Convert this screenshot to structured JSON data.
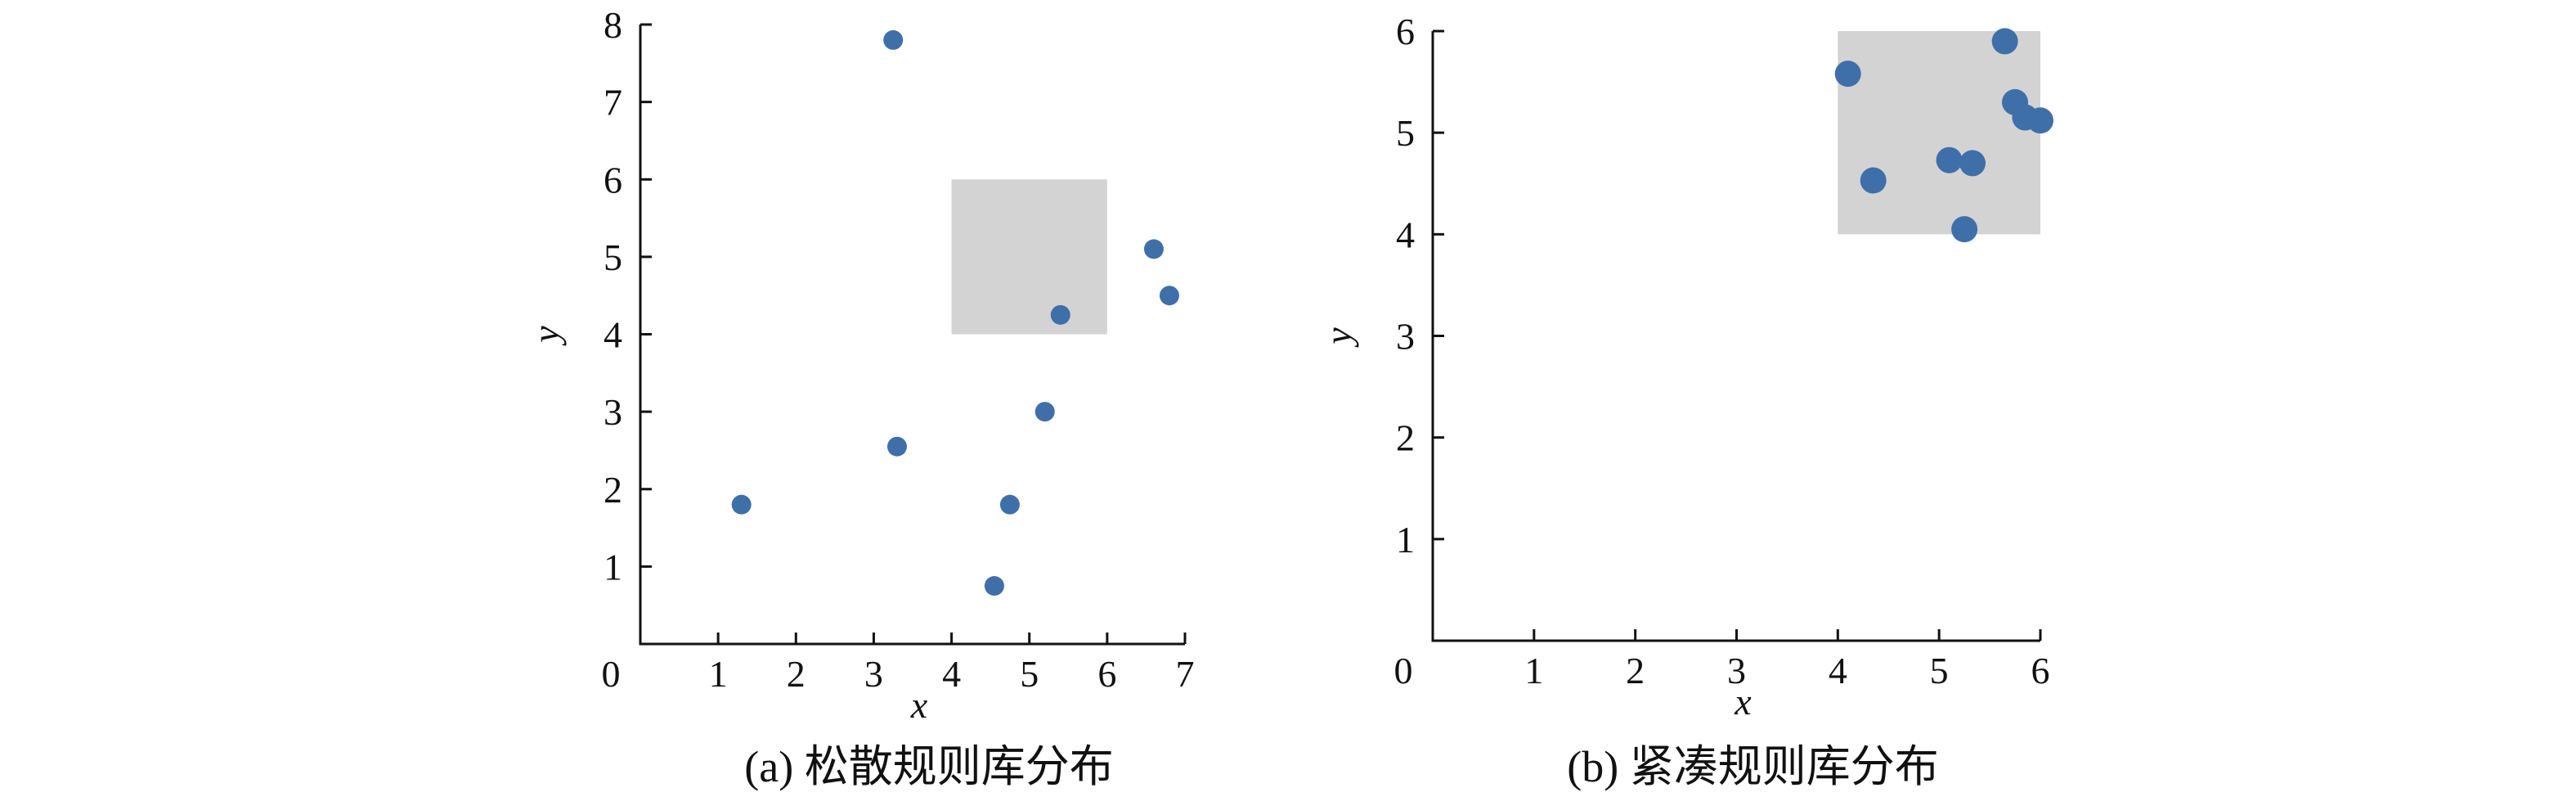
{
  "chart_data": [
    {
      "type": "scatter",
      "title": "",
      "caption": "(a) 松散规则库分布",
      "xlabel": "x",
      "ylabel": "y",
      "xlim": [
        0,
        7
      ],
      "ylim": [
        0,
        8
      ],
      "x_ticks": [
        "1",
        "2",
        "3",
        "4",
        "5",
        "6",
        "7"
      ],
      "y_ticks": [
        "1",
        "2",
        "3",
        "4",
        "5",
        "6",
        "7",
        "8"
      ],
      "origin_label": "0",
      "grid": false,
      "highlight_region": {
        "x": [
          4,
          6
        ],
        "y": [
          4,
          6
        ],
        "color": "#d3d3d3"
      },
      "point_color": "#3f6fa9",
      "points": [
        {
          "x": 3.25,
          "y": 7.8
        },
        {
          "x": 6.6,
          "y": 5.1
        },
        {
          "x": 6.8,
          "y": 4.5
        },
        {
          "x": 5.4,
          "y": 4.25
        },
        {
          "x": 5.2,
          "y": 3.0
        },
        {
          "x": 3.3,
          "y": 2.55
        },
        {
          "x": 1.3,
          "y": 1.8
        },
        {
          "x": 4.75,
          "y": 1.8
        },
        {
          "x": 4.55,
          "y": 0.75
        }
      ]
    },
    {
      "type": "scatter",
      "title": "",
      "caption": "(b) 紧凑规则库分布",
      "xlabel": "x",
      "ylabel": "y",
      "xlim": [
        0,
        6
      ],
      "ylim": [
        0,
        6
      ],
      "x_ticks": [
        "1",
        "2",
        "3",
        "4",
        "5",
        "6"
      ],
      "y_ticks": [
        "1",
        "2",
        "3",
        "4",
        "5",
        "6"
      ],
      "origin_label": "0",
      "grid": false,
      "highlight_region": {
        "x": [
          4,
          6
        ],
        "y": [
          4,
          6
        ],
        "color": "#d3d3d3"
      },
      "point_color": "#3f6fa9",
      "points": [
        {
          "x": 5.65,
          "y": 5.9
        },
        {
          "x": 4.1,
          "y": 5.58
        },
        {
          "x": 5.75,
          "y": 5.3
        },
        {
          "x": 5.85,
          "y": 5.15
        },
        {
          "x": 6.0,
          "y": 5.12
        },
        {
          "x": 4.35,
          "y": 4.53
        },
        {
          "x": 5.1,
          "y": 4.73
        },
        {
          "x": 5.33,
          "y": 4.7
        },
        {
          "x": 5.25,
          "y": 4.05
        }
      ]
    }
  ]
}
